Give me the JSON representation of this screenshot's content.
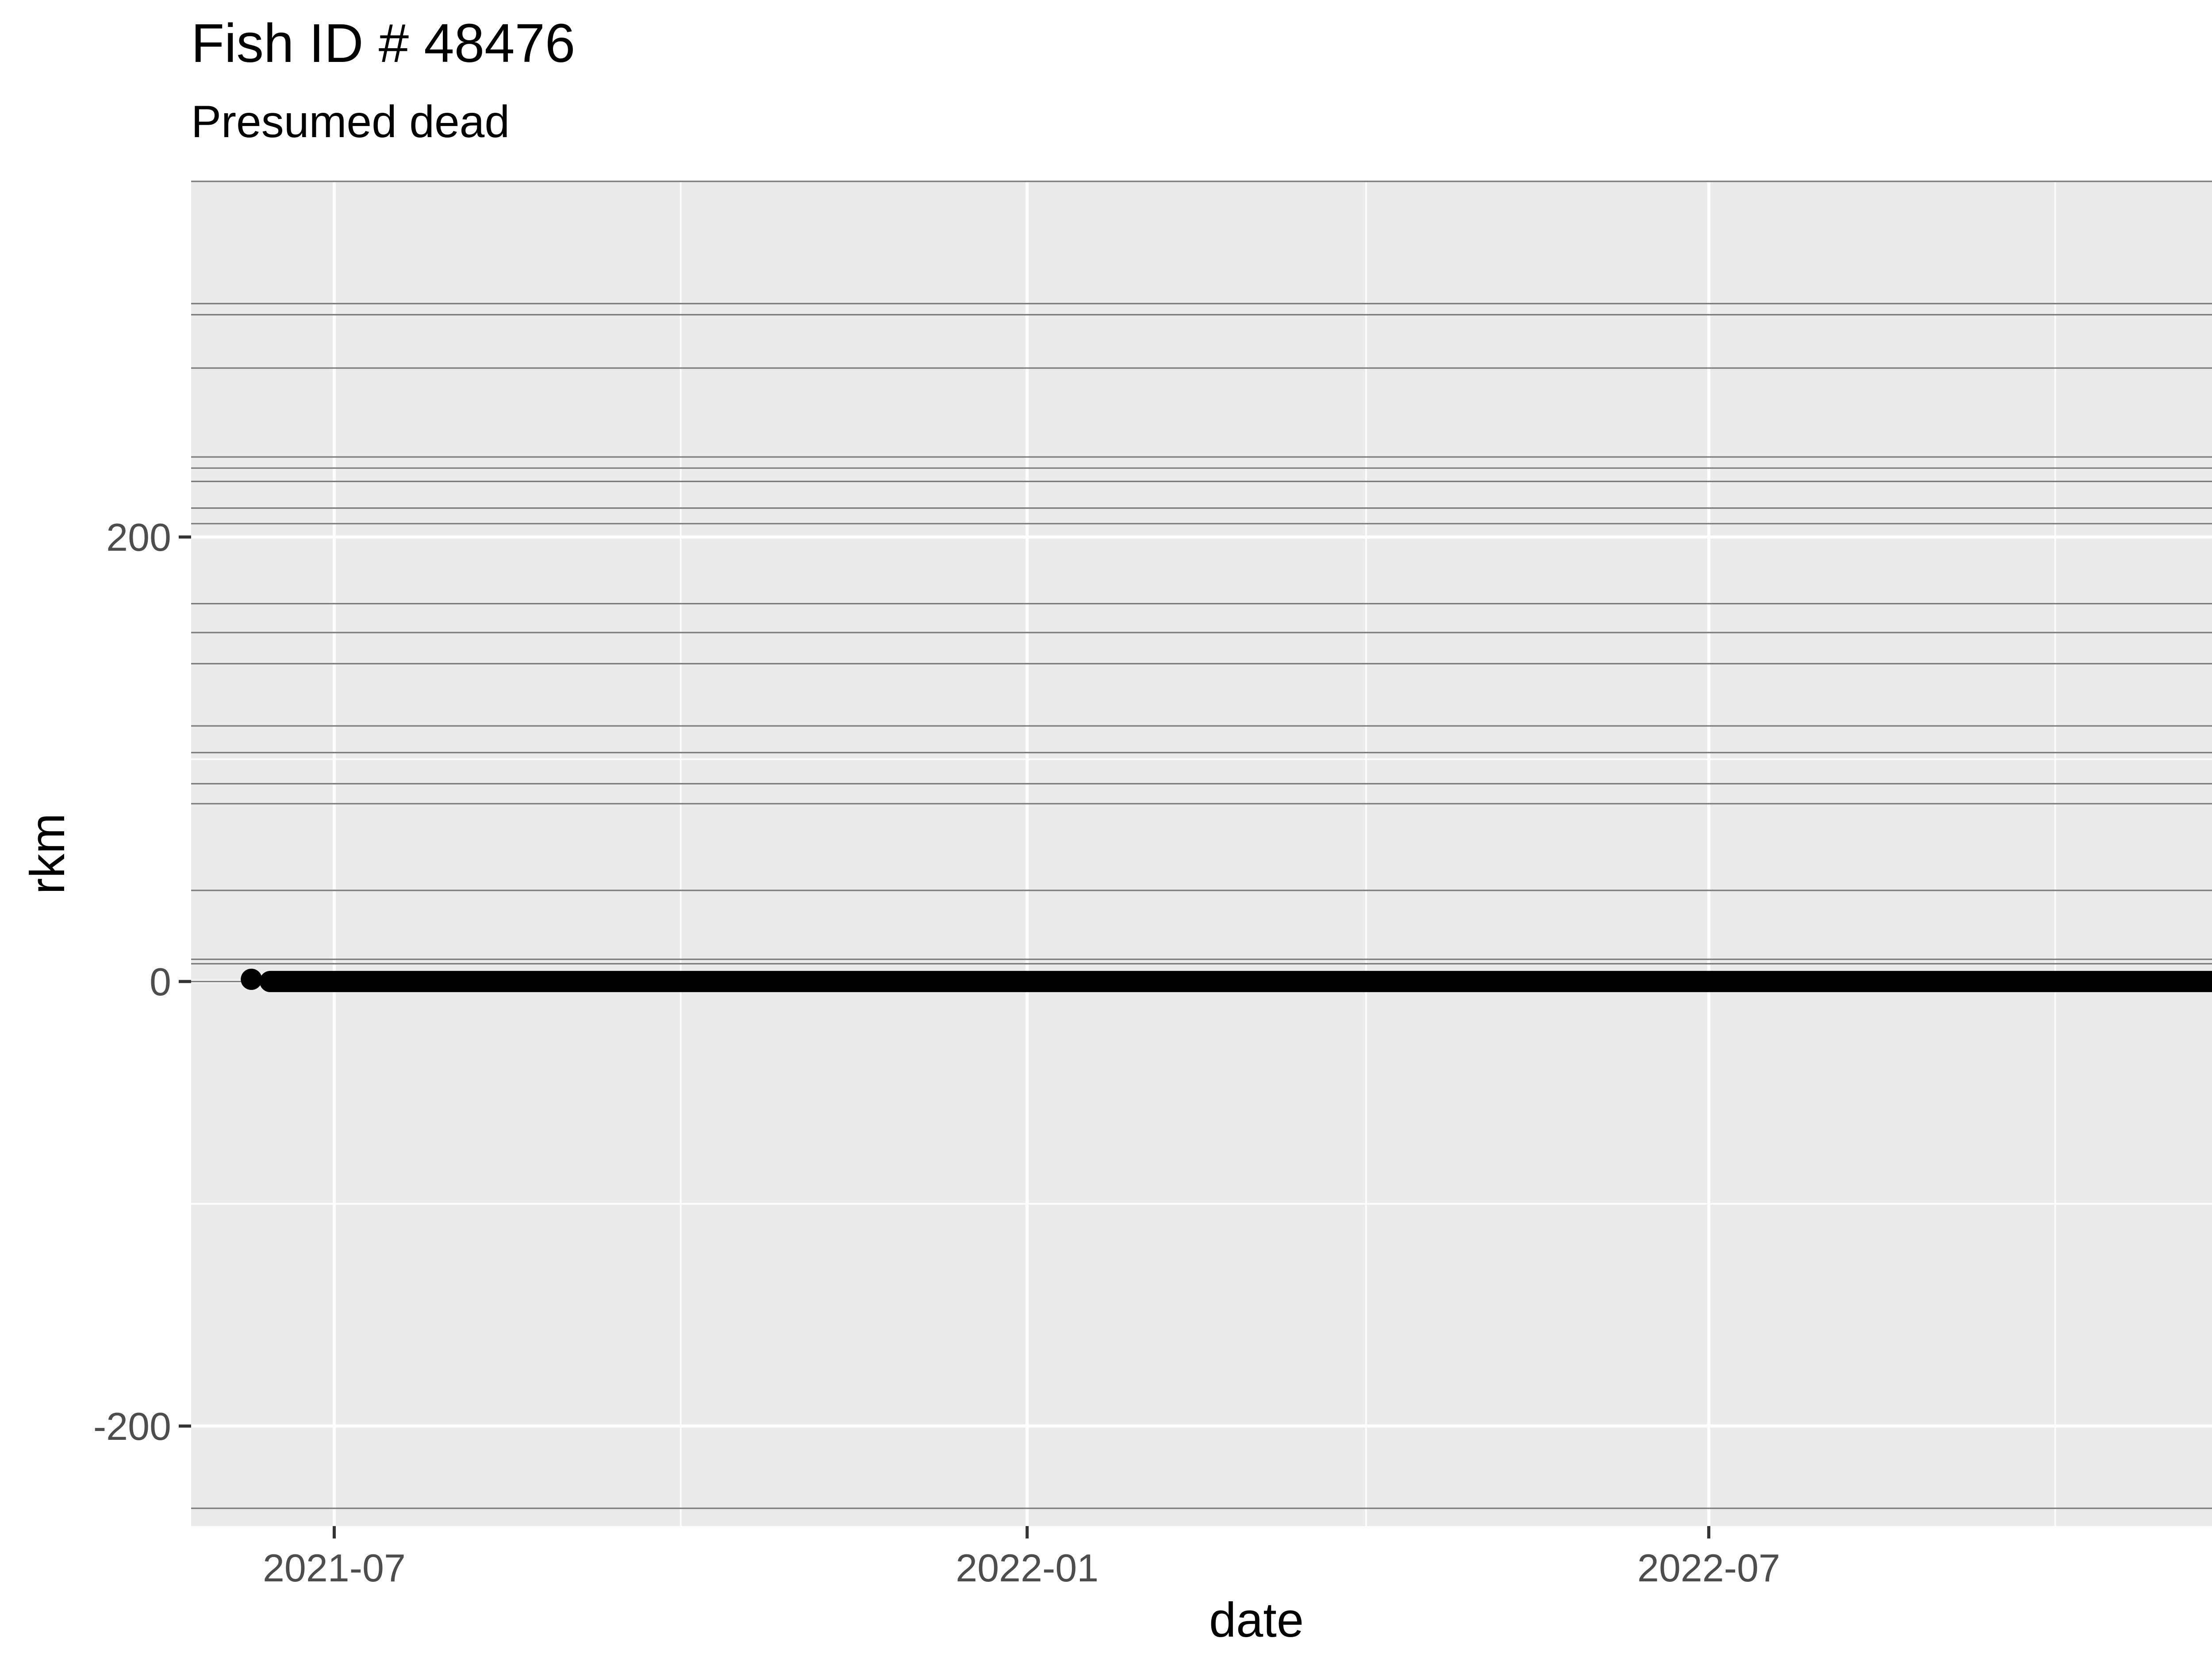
{
  "chart_data": {
    "type": "scatter",
    "title": "Fish ID # 48476",
    "subtitle": "Presumed dead",
    "xlabel": "date",
    "ylabel": "rkm",
    "xlim": [
      "2021-05-24",
      "2022-12-11"
    ],
    "ylim": [
      -245,
      360
    ],
    "x_ticks": [
      "2021-07-01",
      "2022-01-01",
      "2022-07-01"
    ],
    "x_tick_labels": [
      "2021-07",
      "2022-01",
      "2022-07"
    ],
    "x_minor_ticks": [
      "2021-10-01",
      "2022-04-01",
      "2022-10-01"
    ],
    "y_ticks": [
      -200,
      0,
      200
    ],
    "y_tick_labels": [
      "-200",
      "0",
      "200"
    ],
    "y_minor_ticks": [
      -100,
      100
    ],
    "reference_lines_rkm": [
      -237,
      0,
      8,
      10,
      41,
      80,
      89,
      103,
      115,
      143,
      157,
      170,
      206,
      213,
      225,
      231,
      236,
      276,
      300,
      305,
      360
    ],
    "series": [
      {
        "points": [
          {
            "date": "2021-06-09",
            "rkm": 1
          }
        ],
        "segment": {
          "start": "2021-06-14",
          "end": "2022-11-22",
          "rkm": 0
        }
      }
    ],
    "grid": true,
    "legend": "none",
    "colors": {
      "panel": "#ebebeb",
      "grid": "#ffffff",
      "reference_line": "#7a7a7a",
      "points": "#000000",
      "text": "#000000",
      "tick_text": "#4d4d4d",
      "tick_mark": "#333333"
    }
  }
}
